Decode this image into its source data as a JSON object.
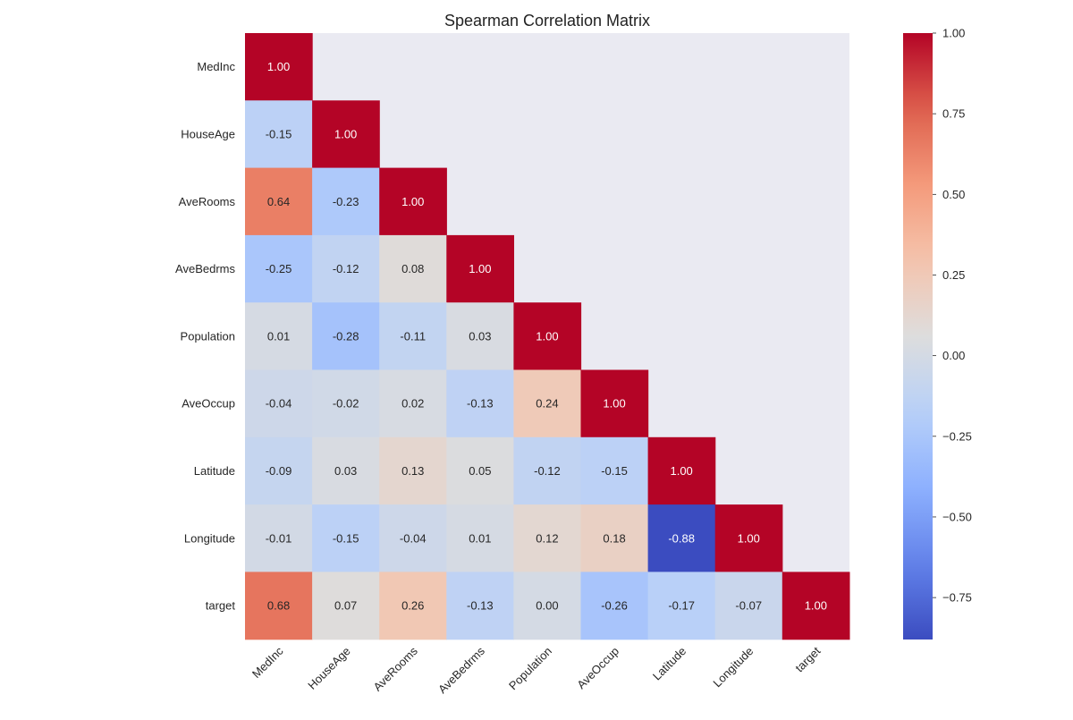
{
  "chart_data": {
    "type": "heatmap",
    "title": "Spearman Correlation Matrix",
    "variables": [
      "MedInc",
      "HouseAge",
      "AveRooms",
      "AveBedrms",
      "Population",
      "AveOccup",
      "Latitude",
      "Longitude",
      "target"
    ],
    "mask": "upper-triangle",
    "matrix_lower": [
      [
        1.0
      ],
      [
        -0.15,
        1.0
      ],
      [
        0.64,
        -0.23,
        1.0
      ],
      [
        -0.25,
        -0.12,
        0.08,
        1.0
      ],
      [
        0.01,
        -0.28,
        -0.11,
        0.03,
        1.0
      ],
      [
        -0.04,
        -0.02,
        0.02,
        -0.13,
        0.24,
        1.0
      ],
      [
        -0.09,
        0.03,
        0.13,
        0.05,
        -0.12,
        -0.15,
        1.0
      ],
      [
        -0.01,
        -0.15,
        -0.04,
        0.01,
        0.12,
        0.18,
        -0.88,
        1.0
      ],
      [
        0.68,
        0.07,
        0.26,
        -0.13,
        0.0,
        -0.26,
        -0.17,
        -0.07,
        1.0
      ]
    ],
    "colorscale": "coolwarm",
    "vmin": -0.88,
    "vmax": 1.0,
    "colorbar_ticks": [
      1.0,
      0.75,
      0.5,
      0.25,
      0.0,
      -0.25,
      -0.5,
      -0.75
    ],
    "colorbar_tick_labels": [
      "1.00",
      "0.75",
      "0.50",
      "0.25",
      "0.00",
      "−0.25",
      "−0.50",
      "−0.75"
    ],
    "value_format": "2 decimals",
    "background_color": "#eaeaf2",
    "x_tick_rotation_deg": 45
  }
}
